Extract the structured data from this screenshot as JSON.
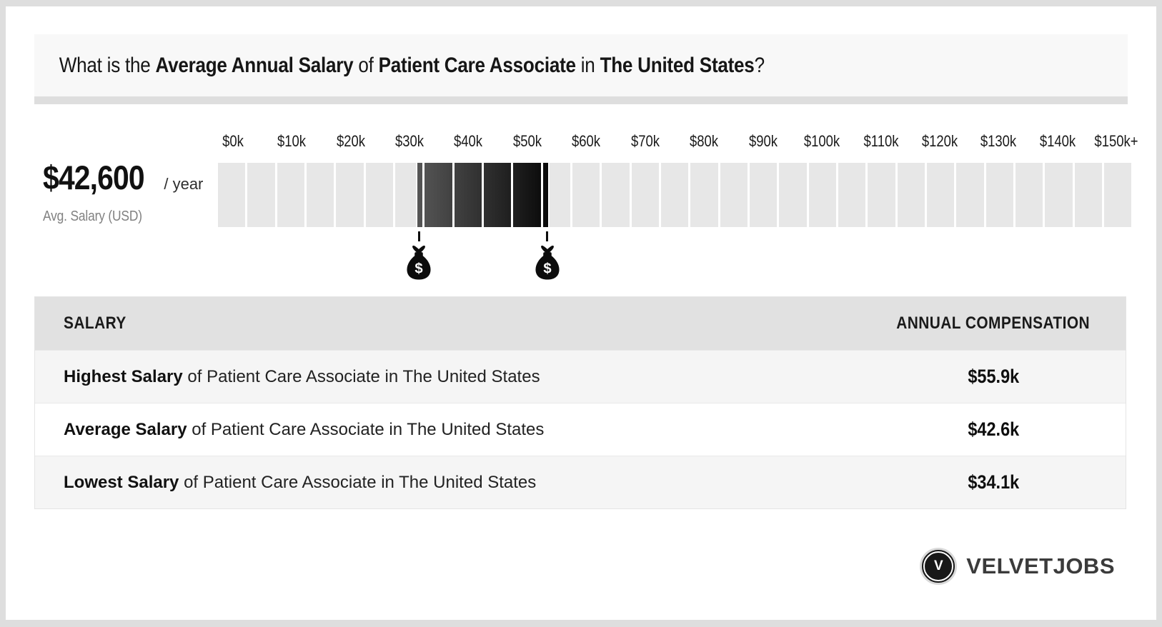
{
  "header": {
    "question_parts": [
      {
        "text": "What is the ",
        "bold": false
      },
      {
        "text": "Average Annual Salary",
        "bold": true
      },
      {
        "text": " of ",
        "bold": false
      },
      {
        "text": "Patient Care Associate",
        "bold": true
      },
      {
        "text": " in ",
        "bold": false
      },
      {
        "text": "The United States",
        "bold": true
      },
      {
        "text": "?",
        "bold": false
      }
    ]
  },
  "summary": {
    "amount": "$42,600",
    "per": "/ year",
    "label": "Avg. Salary (USD)"
  },
  "chart_data": {
    "type": "bar",
    "subtype": "salary-range-highlight",
    "title": "Salary range of Patient Care Associate in The United States",
    "axis_tick_labels": [
      "$0k",
      "$10k",
      "$20k",
      "$30k",
      "$40k",
      "$50k",
      "$60k",
      "$70k",
      "$80k",
      "$90k",
      "$100k",
      "$110k",
      "$120k",
      "$130k",
      "$140k",
      "$150k+"
    ],
    "axis_min": 0,
    "axis_max": 155000,
    "tick_step": 10000,
    "cell_size": 5000,
    "lowest_salary": 34100,
    "average_salary": 42600,
    "highest_salary": 55900,
    "highlight_range": [
      34100,
      55900
    ],
    "markers": [
      "money-bag-at-lowest",
      "money-bag-at-highest"
    ],
    "colors": {
      "cell_bg": "#e7e7e7",
      "range_start": "#565656",
      "range_end": "#0a0a0a",
      "gap": "#ffffff"
    }
  },
  "table": {
    "headers": [
      "SALARY",
      "ANNUAL COMPENSATION"
    ],
    "rows": [
      {
        "lead": "Highest Salary",
        "rest": " of Patient Care Associate in The United States",
        "value": "$55.9k"
      },
      {
        "lead": "Average Salary",
        "rest": " of Patient Care Associate in The United States",
        "value": "$42.6k"
      },
      {
        "lead": "Lowest Salary",
        "rest": " of Patient Care Associate in The United States",
        "value": "$34.1k"
      }
    ]
  },
  "footer": {
    "brand": "VELVETJOBS",
    "logo_letter": "V",
    "money_bag_symbol": "$"
  }
}
